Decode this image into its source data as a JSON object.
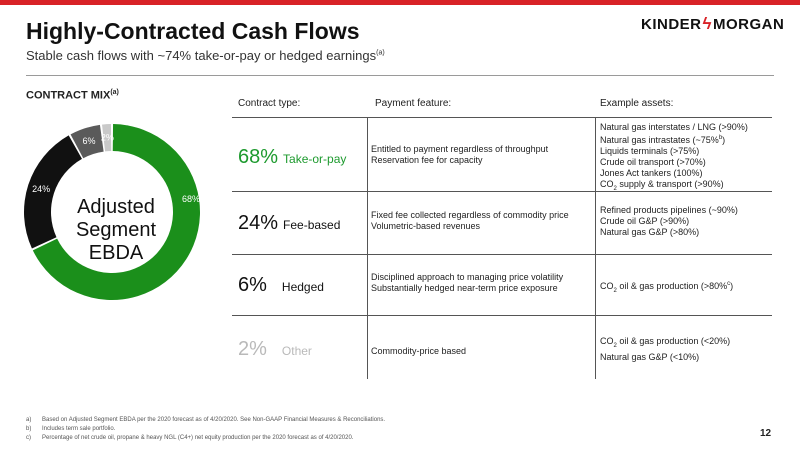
{
  "header": {
    "title": "Highly-Contracted Cash Flows",
    "subtitle": "Stable cash flows with ~74% take-or-pay or hedged earnings",
    "subtitle_note": "(a)",
    "logo_left": "KINDER",
    "logo_right": "MORGAN"
  },
  "contract_mix": {
    "label": "CONTRACT MIX",
    "label_note": "(a)",
    "center_lines": [
      "Adjusted",
      "Segment",
      "EBDA"
    ]
  },
  "chart_data": {
    "type": "pie",
    "variant": "donut",
    "title": "Adjusted Segment EBDA",
    "categories": [
      "Take-or-pay",
      "Fee-based",
      "Hedged",
      "Other"
    ],
    "values": [
      68,
      24,
      6,
      2
    ],
    "labels": [
      "68%",
      "24%",
      "6%",
      "2%"
    ],
    "colors": [
      "#1b8f1b",
      "#111111",
      "#5a5a5a",
      "#c9c9c9"
    ]
  },
  "table": {
    "headers": {
      "type": "Contract type:",
      "feature": "Payment feature:",
      "assets": "Example assets:"
    },
    "rows": [
      {
        "pct": "68%",
        "type": "Take-or-pay",
        "style": "green",
        "features": [
          "Entitled to payment regardless of throughput",
          "Reservation fee for capacity"
        ],
        "assets": [
          "Natural gas interstates / LNG (>90%)",
          "Natural gas intrastates (~75%",
          "Liquids terminals (>75%)",
          "Crude oil transport (>70%)",
          "Jones Act tankers (100%)",
          "supply & transport (>90%)"
        ]
      },
      {
        "pct": "24%",
        "type": "Fee-based",
        "style": "dark",
        "features": [
          "Fixed fee collected regardless of commodity price",
          "Volumetric-based revenues"
        ],
        "assets": [
          "Refined products pipelines (~90%)",
          "Crude oil G&P (>90%)",
          "Natural gas G&P (>80%)"
        ]
      },
      {
        "pct": "6%",
        "type": "Hedged",
        "style": "dark",
        "features": [
          "Disciplined approach to managing price volatility",
          "Substantially hedged near-term price exposure"
        ],
        "assets": [
          " oil & gas production (>80%"
        ]
      },
      {
        "pct": "2%",
        "type": "Other",
        "style": "gray",
        "features": [
          "Commodity-price based"
        ],
        "assets": [
          " oil & gas production (<20%)",
          "Natural gas G&P (<10%)"
        ]
      }
    ],
    "co2_prefix": "CO",
    "co2_sub": "2",
    "note_b": "b",
    "note_c": "c",
    "close_paren": ")"
  },
  "footnotes": [
    {
      "key": "a)",
      "text": "Based on Adjusted Segment EBDA per the 2020 forecast as of 4/20/2020. See Non-GAAP Financial Measures & Reconciliations."
    },
    {
      "key": "b)",
      "text": "Includes term sale portfolio."
    },
    {
      "key": "c)",
      "text": "Percentage of net crude oil, propane & heavy NGL (C4+) net equity production per the 2020 forecast as of 4/20/2020."
    }
  ],
  "page_number": "12"
}
